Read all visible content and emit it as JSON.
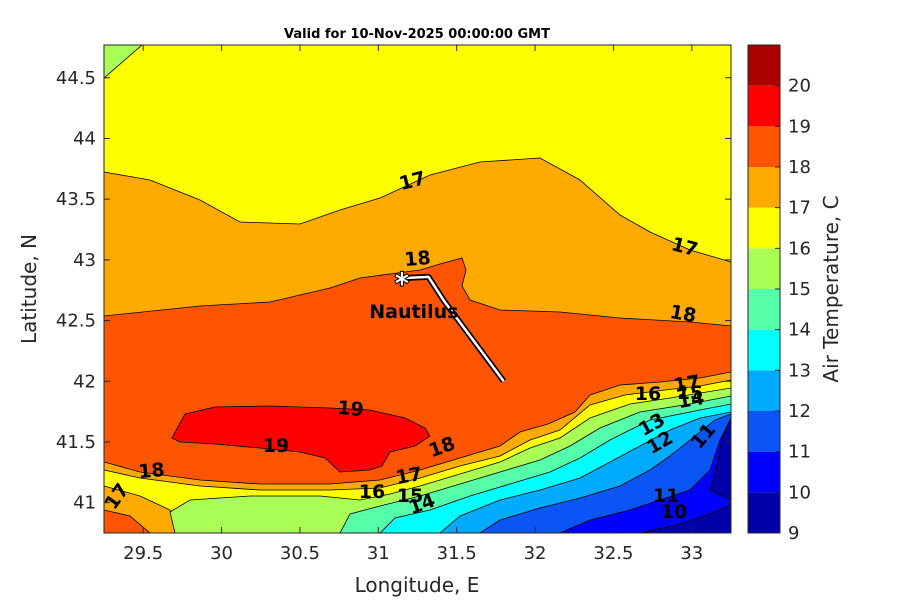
{
  "chart_data": {
    "type": "contour",
    "title": "Valid for 10-Nov-2025 00:00:00 GMT",
    "xlabel": "Longitude, E",
    "ylabel": "Latitude, N",
    "xlim": [
      29.25,
      33.25
    ],
    "ylim": [
      40.75,
      44.77
    ],
    "xticks": [
      "29.5",
      "30",
      "30.5",
      "31",
      "31.5",
      "32",
      "32.5",
      "33"
    ],
    "yticks": [
      "41",
      "41.5",
      "42",
      "42.5",
      "43",
      "43.5",
      "44",
      "44.5"
    ],
    "colorbar": {
      "label": "Air Temperature, C",
      "ticks": [
        "9",
        "10",
        "11",
        "12",
        "13",
        "14",
        "15",
        "16",
        "17",
        "18",
        "19",
        "20"
      ],
      "colors": [
        "#0000a8",
        "#0000ff",
        "#0a55f5",
        "#00aaff",
        "#00ffff",
        "#55ffaa",
        "#aaff55",
        "#ffff00",
        "#ffaa00",
        "#ff5500",
        "#ff0000",
        "#aa0000"
      ]
    },
    "contour_labels": [
      "17",
      "18",
      "17",
      "18",
      "19",
      "19",
      "18",
      "17",
      "18",
      "16",
      "15",
      "14",
      "16",
      "17",
      "15",
      "14",
      "13",
      "12",
      "11",
      "11",
      "10",
      "17"
    ],
    "track": [
      [
        31.8,
        42.0
      ],
      [
        31.42,
        42.66
      ],
      [
        31.32,
        42.86
      ],
      [
        31.15,
        42.85
      ]
    ],
    "station": {
      "label": "Nautilus",
      "lon": 31.15,
      "lat": 42.85
    }
  }
}
